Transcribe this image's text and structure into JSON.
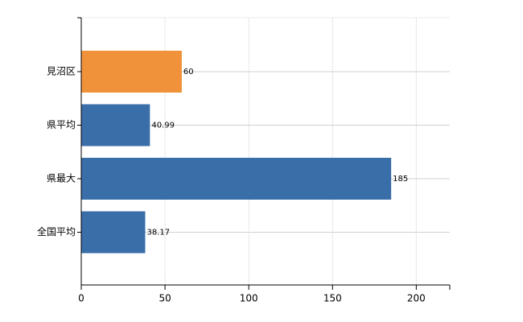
{
  "chart_data": {
    "type": "bar",
    "orientation": "horizontal",
    "categories": [
      "見沼区",
      "県平均",
      "県最大",
      "全国平均"
    ],
    "values": [
      60,
      40.99,
      185,
      38.17
    ],
    "colors": [
      "#f0923a",
      "#3a6ea8",
      "#3a6ea8",
      "#3a6ea8"
    ],
    "xlim": [
      0,
      220
    ],
    "xticks": [
      0,
      50,
      100,
      150,
      200
    ],
    "grid": true
  }
}
